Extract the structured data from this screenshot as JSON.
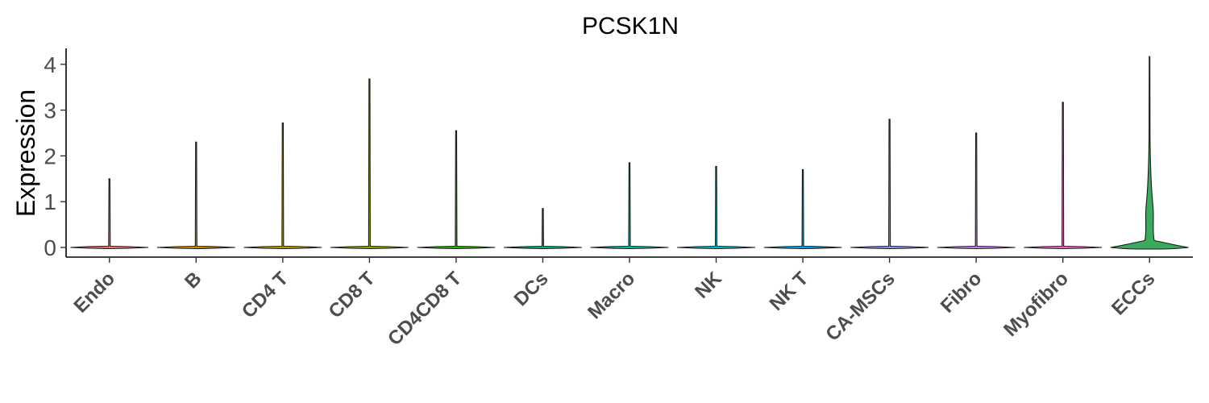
{
  "chart_data": {
    "type": "violin",
    "title": "PCSK1N",
    "xlabel": "",
    "ylabel": "Expression",
    "ylim": [
      -0.2,
      4.3
    ],
    "yticks": [
      "0",
      "1",
      "2",
      "3",
      "4"
    ],
    "categories": [
      "Endo",
      "B",
      "CD4 T",
      "CD8 T",
      "CD4CD8 T",
      "DCs",
      "Macro",
      "NK",
      "NK T",
      "CA-MSCs",
      "Fibro",
      "Myofibro",
      "ECCs"
    ],
    "max_values": [
      1.5,
      2.3,
      2.72,
      3.68,
      2.55,
      0.85,
      1.85,
      1.77,
      1.7,
      2.8,
      2.5,
      3.17,
      4.17
    ],
    "fill_colors": [
      "#F8766D",
      "#E18A00",
      "#BE9C00",
      "#8CAB00",
      "#24B700",
      "#00BE70",
      "#00C1AB",
      "#00BBDA",
      "#00ACFC",
      "#8B93FF",
      "#D575FE",
      "#F962DD",
      "#3aaa5c"
    ],
    "grid": false,
    "legend": "none"
  }
}
